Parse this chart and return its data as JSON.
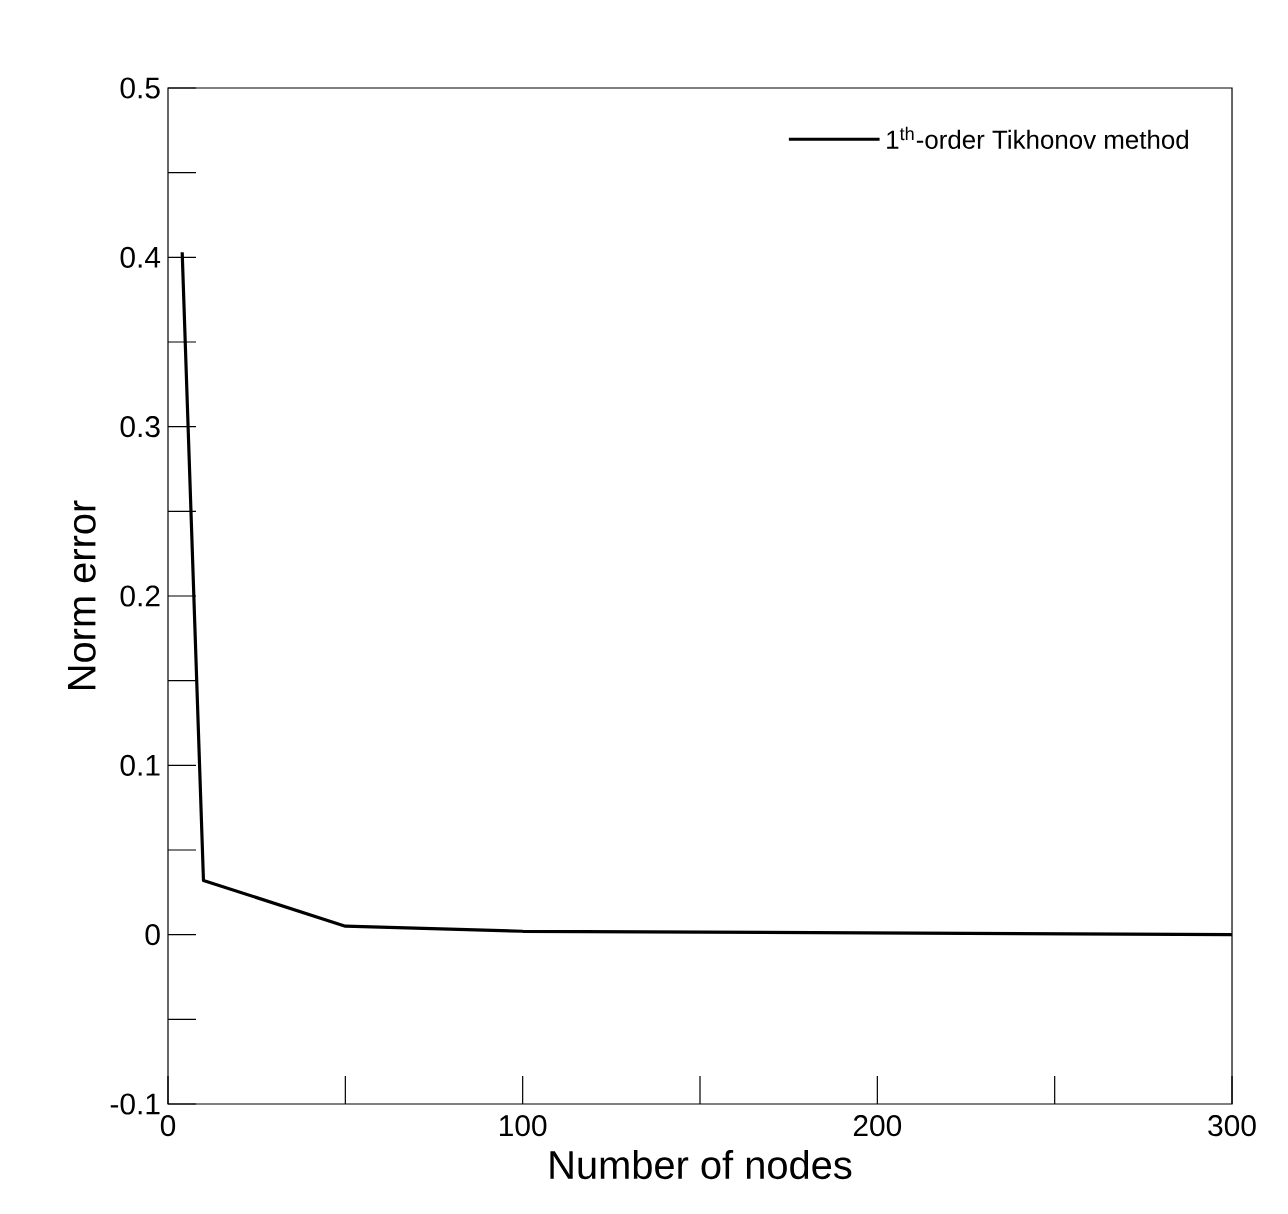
{
  "chart_data": {
    "type": "line",
    "xlabel": "Number of nodes",
    "ylabel": "Norm error",
    "x": [
      4,
      10,
      50,
      100,
      300
    ],
    "series": [
      {
        "name": "1$^{th}$-order Tikhonov method",
        "color": "#000000",
        "values": [
          0.403,
          0.032,
          0.005,
          0.002,
          0.0
        ]
      }
    ],
    "xlim": [
      0,
      300
    ],
    "ylim": [
      -0.1,
      0.5
    ],
    "xticks": [
      0,
      {
        "value": 50,
        "label": null
      },
      100,
      {
        "value": 150,
        "label": null
      },
      200,
      {
        "value": 250,
        "label": null
      },
      300
    ],
    "yticks": [
      -0.1,
      {
        "value": -0.05,
        "label": null
      },
      0,
      {
        "value": 0.05,
        "label": null
      },
      0.1,
      {
        "value": 0.15,
        "label": null
      },
      0.2,
      {
        "value": 0.25,
        "label": null
      },
      0.3,
      {
        "value": 0.35,
        "label": null
      },
      0.4,
      {
        "value": 0.45,
        "label": null
      },
      0.5
    ],
    "legend": "top right",
    "marker": "none",
    "line_style": "solid",
    "grid": false
  }
}
